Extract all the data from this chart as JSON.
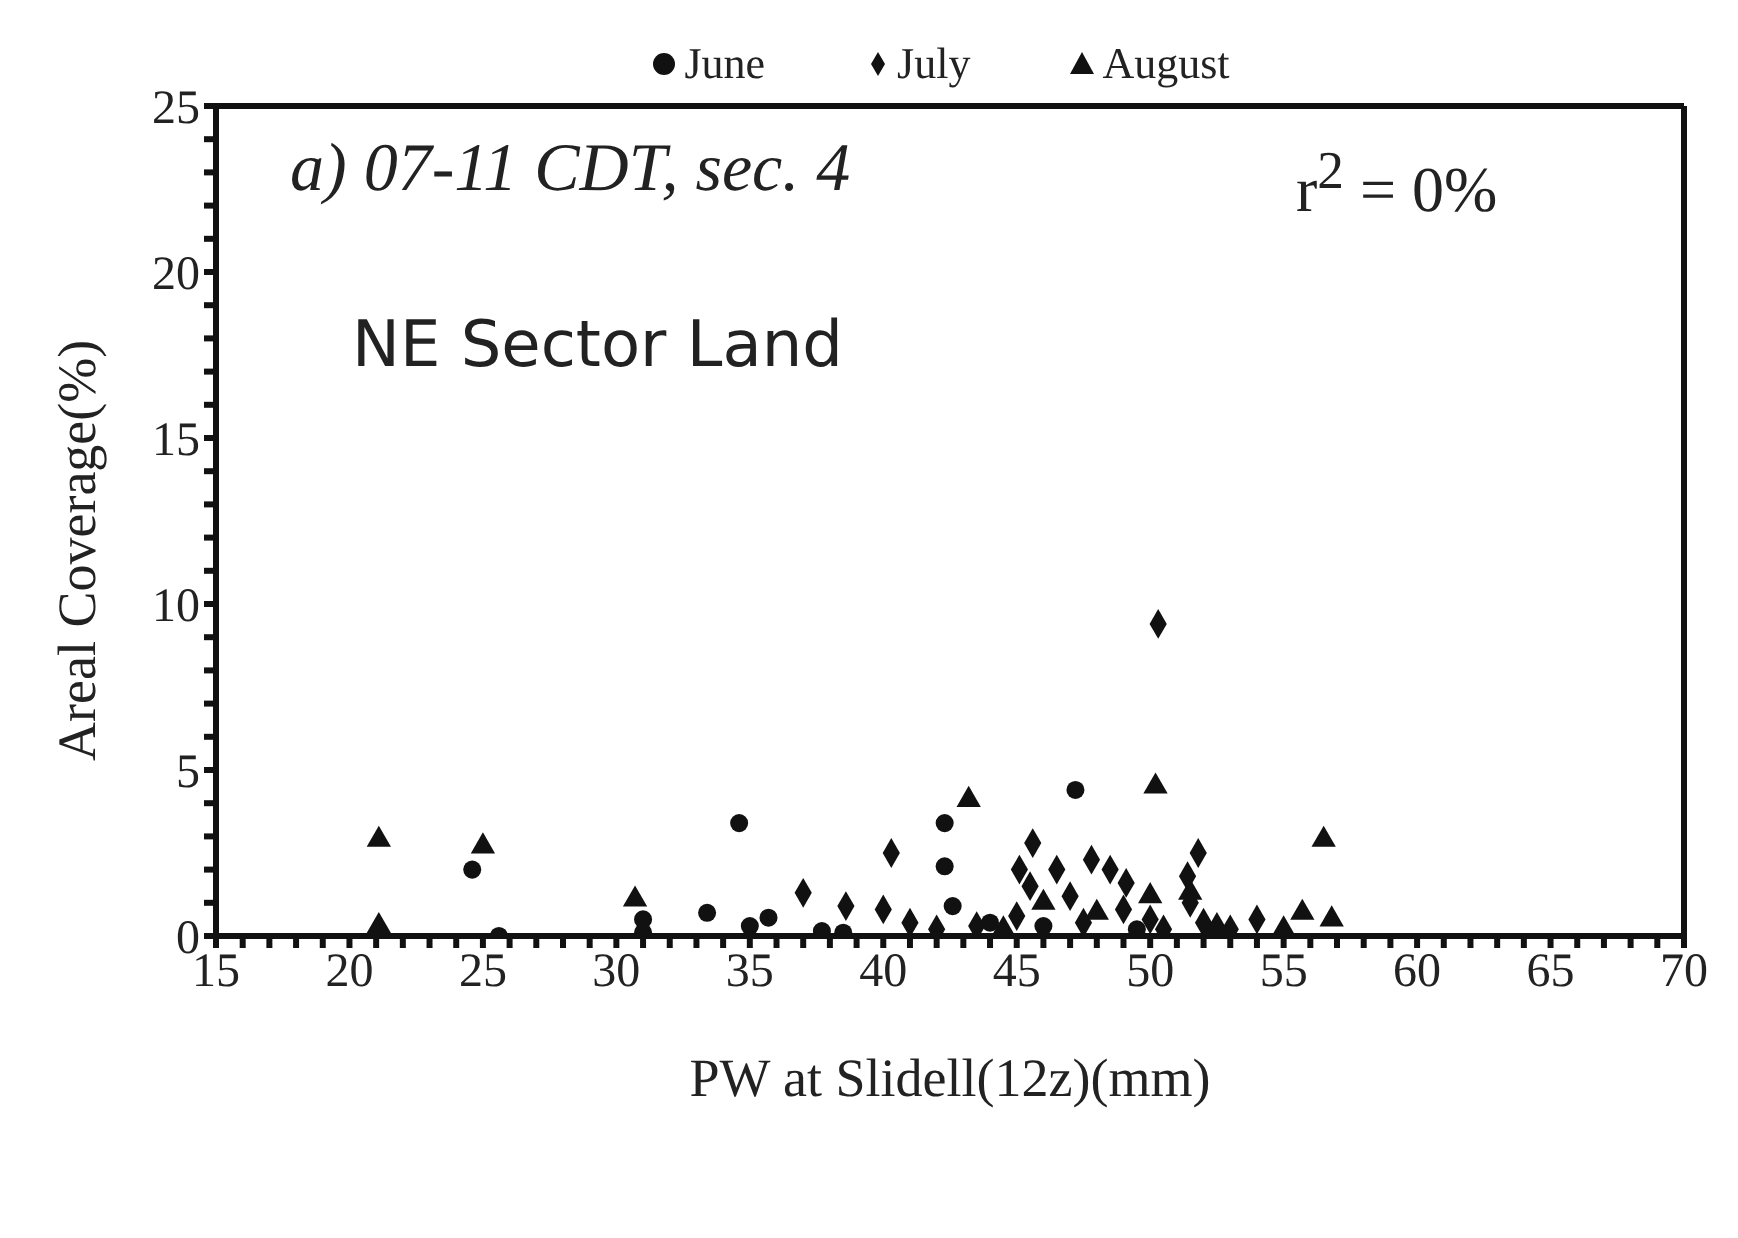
{
  "chart_data": {
    "type": "scatter",
    "xlabel": "PW at  Slidell(12z)(mm)",
    "ylabel": "Areal Coverage(%)",
    "annotations": [
      "a) 07-11 CDT, sec. 4",
      "r$^{2}$ = 0%",
      "NE Sector Land"
    ],
    "xlim": [
      15,
      70
    ],
    "ylim": [
      0,
      25
    ],
    "xticks": [
      15,
      {
        "value": 16,
        "label": null
      },
      {
        "value": 17,
        "label": null
      },
      {
        "value": 18,
        "label": null
      },
      {
        "value": 19,
        "label": null
      },
      20,
      {
        "value": 21,
        "label": null
      },
      {
        "value": 22,
        "label": null
      },
      {
        "value": 23,
        "label": null
      },
      {
        "value": 24,
        "label": null
      },
      25,
      {
        "value": 26,
        "label": null
      },
      {
        "value": 27,
        "label": null
      },
      {
        "value": 28,
        "label": null
      },
      {
        "value": 29,
        "label": null
      },
      30,
      {
        "value": 31,
        "label": null
      },
      {
        "value": 32,
        "label": null
      },
      {
        "value": 33,
        "label": null
      },
      {
        "value": 34,
        "label": null
      },
      35,
      {
        "value": 36,
        "label": null
      },
      {
        "value": 37,
        "label": null
      },
      {
        "value": 38,
        "label": null
      },
      {
        "value": 39,
        "label": null
      },
      40,
      {
        "value": 41,
        "label": null
      },
      {
        "value": 42,
        "label": null
      },
      {
        "value": 43,
        "label": null
      },
      {
        "value": 44,
        "label": null
      },
      45,
      {
        "value": 46,
        "label": null
      },
      {
        "value": 47,
        "label": null
      },
      {
        "value": 48,
        "label": null
      },
      {
        "value": 49,
        "label": null
      },
      50,
      {
        "value": 51,
        "label": null
      },
      {
        "value": 52,
        "label": null
      },
      {
        "value": 53,
        "label": null
      },
      {
        "value": 54,
        "label": null
      },
      55,
      {
        "value": 56,
        "label": null
      },
      {
        "value": 57,
        "label": null
      },
      {
        "value": 58,
        "label": null
      },
      {
        "value": 59,
        "label": null
      },
      60,
      {
        "value": 61,
        "label": null
      },
      {
        "value": 62,
        "label": null
      },
      {
        "value": 63,
        "label": null
      },
      {
        "value": 64,
        "label": null
      },
      65,
      {
        "value": 66,
        "label": null
      },
      {
        "value": 67,
        "label": null
      },
      {
        "value": 68,
        "label": null
      },
      {
        "value": 69,
        "label": null
      },
      70
    ],
    "yticks": [
      0,
      {
        "value": 1,
        "label": null
      },
      {
        "value": 2,
        "label": null
      },
      {
        "value": 3,
        "label": null
      },
      {
        "value": 4,
        "label": null
      },
      5,
      {
        "value": 6,
        "label": null
      },
      {
        "value": 7,
        "label": null
      },
      {
        "value": 8,
        "label": null
      },
      {
        "value": 9,
        "label": null
      },
      10,
      {
        "value": 11,
        "label": null
      },
      {
        "value": 12,
        "label": null
      },
      {
        "value": 13,
        "label": null
      },
      {
        "value": 14,
        "label": null
      },
      15,
      {
        "value": 16,
        "label": null
      },
      {
        "value": 17,
        "label": null
      },
      {
        "value": 18,
        "label": null
      },
      {
        "value": 19,
        "label": null
      },
      20,
      {
        "value": 21,
        "label": null
      },
      {
        "value": 22,
        "label": null
      },
      {
        "value": 23,
        "label": null
      },
      {
        "value": 24,
        "label": null
      },
      25
    ],
    "grid": false,
    "legend": "top",
    "series": [
      {
        "name": "June",
        "color": "#111111",
        "marker": "circle",
        "x": [
          24.6,
          25.6,
          34.6,
          42.3,
          42.3,
          42.6,
          47.2,
          31,
          31,
          33.4,
          35,
          35.7,
          37.7,
          38.5,
          44,
          46,
          49.5
        ],
        "values": [
          2.0,
          0,
          3.4,
          3.4,
          2.1,
          0.9,
          4.4,
          0.5,
          0.1,
          0.7,
          0.3,
          0.55,
          0.15,
          0.1,
          0.4,
          0.3,
          0.2
        ]
      },
      {
        "name": "July",
        "color": "#111111",
        "marker": "diamond",
        "x": [
          37,
          38.6,
          40.3,
          45.6,
          51.8,
          50.3,
          51.4,
          49.1,
          47.8,
          45.1,
          40,
          41,
          42,
          43.5,
          45,
          45.5,
          46.5,
          47,
          47.5,
          48.5,
          49,
          50,
          50.5,
          51.5,
          52,
          53,
          54
        ],
        "values": [
          1.3,
          0.9,
          2.5,
          2.8,
          2.5,
          9.4,
          1.8,
          1.6,
          2.3,
          2.0,
          0.8,
          0.4,
          0.2,
          0.3,
          0.6,
          1.5,
          2.0,
          1.2,
          0.4,
          2.0,
          0.8,
          0.5,
          0.2,
          1.0,
          0.4,
          0.2,
          0.5
        ]
      },
      {
        "name": "August",
        "color": "#111111",
        "marker": "triangle",
        "x": [
          21.1,
          21.1,
          25,
          30.7,
          43.2,
          50.2,
          56.5,
          56.8,
          55.7,
          44.5,
          46,
          48,
          50,
          51.5,
          52.5,
          55
        ],
        "values": [
          2.9,
          0.3,
          2.7,
          1.1,
          4.1,
          4.5,
          2.9,
          0.5,
          0.7,
          0.2,
          1.0,
          0.7,
          1.2,
          1.3,
          0.3,
          0.2
        ]
      }
    ]
  }
}
